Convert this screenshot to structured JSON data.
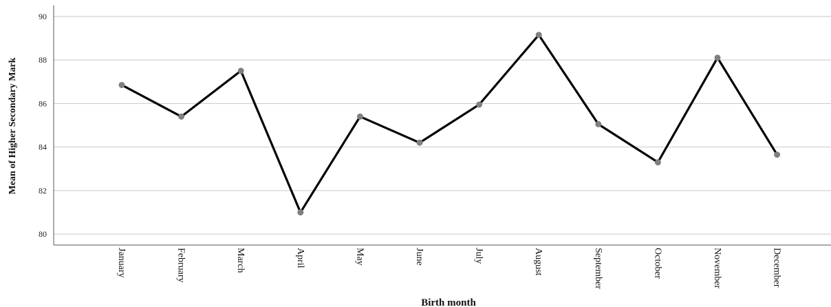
{
  "chart_data": {
    "type": "line",
    "title": "",
    "xlabel": "Birth month",
    "ylabel": "Mean of Higher Secondary Mark",
    "categories": [
      "January",
      "February",
      "March",
      "April",
      "May",
      "June",
      "July",
      "August",
      "September",
      "October",
      "November",
      "December"
    ],
    "series": [
      {
        "values": [
          86.85,
          85.4,
          87.5,
          81.0,
          85.4,
          84.2,
          85.95,
          89.15,
          85.05,
          83.3,
          88.1,
          83.65
        ]
      }
    ],
    "ylim": [
      79.5,
      90.5
    ],
    "yticks": [
      "80",
      "82",
      "84",
      "86",
      "88",
      "90"
    ],
    "ytick_values": [
      80,
      82,
      84,
      86,
      88,
      90
    ],
    "grid": true,
    "line_color": "#000000",
    "marker_color": "#808080",
    "gridline_color": "#c8c8c8"
  }
}
